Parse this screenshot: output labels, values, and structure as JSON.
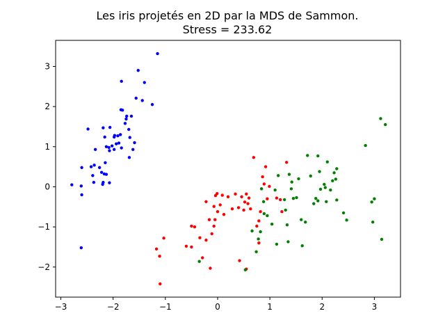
{
  "chart_data": {
    "type": "scatter",
    "title": "Les iris projetés en 2D par la MDS de Sammon.",
    "subtitle": "Stress = 233.62",
    "xlabel": "",
    "ylabel": "",
    "xlim": [
      -3.1,
      3.5
    ],
    "ylim": [
      -2.75,
      3.65
    ],
    "xticks": [
      -3,
      -2,
      -1,
      0,
      1,
      2,
      3
    ],
    "yticks": [
      -2,
      -1,
      0,
      1,
      2,
      3
    ],
    "grid": false,
    "series": [
      {
        "color": "#0000ff",
        "points": [
          [
            -2.79,
            0.05
          ],
          [
            -2.6,
            0.48
          ],
          [
            -2.61,
            0.02
          ],
          [
            -2.6,
            -0.2
          ],
          [
            -2.61,
            -1.52
          ],
          [
            -2.48,
            1.44
          ],
          [
            -2.42,
            0.5
          ],
          [
            -2.36,
            0.54
          ],
          [
            -2.34,
            0.93
          ],
          [
            -2.39,
            0.28
          ],
          [
            -2.37,
            0.11
          ],
          [
            -2.26,
            0.48
          ],
          [
            -2.22,
            0.36
          ],
          [
            -2.2,
            0.06
          ],
          [
            -2.19,
            0.11
          ],
          [
            -2.17,
            0.32
          ],
          [
            -2.15,
            0.6
          ],
          [
            -2.19,
            1.47
          ],
          [
            -2.16,
            1.24
          ],
          [
            -2.13,
            1.0
          ],
          [
            -2.13,
            0.31
          ],
          [
            -2.08,
            0.98
          ],
          [
            -2.07,
            0.9
          ],
          [
            -2.06,
            1.48
          ],
          [
            -2.07,
            0.1
          ],
          [
            -2.02,
            1.02
          ],
          [
            -1.97,
            1.28
          ],
          [
            -1.94,
            1.07
          ],
          [
            -1.91,
            1.27
          ],
          [
            -1.89,
            1.09
          ],
          [
            -1.86,
            1.3
          ],
          [
            -1.98,
            1.24
          ],
          [
            -1.98,
            0.93
          ],
          [
            -1.85,
            1.92
          ],
          [
            -1.82,
            1.91
          ],
          [
            -1.84,
            2.63
          ],
          [
            -1.84,
            0.97
          ],
          [
            -1.77,
            1.58
          ],
          [
            -1.75,
            1.69
          ],
          [
            -1.74,
            1.76
          ],
          [
            -1.7,
            1.43
          ],
          [
            -1.68,
            1.23
          ],
          [
            -1.69,
            0.73
          ],
          [
            -1.65,
            1.76
          ],
          [
            -1.62,
            0.93
          ],
          [
            -1.59,
            1.1
          ],
          [
            -1.56,
            2.21
          ],
          [
            -1.52,
            2.9
          ],
          [
            -1.44,
            2.15
          ],
          [
            -1.4,
            2.6
          ],
          [
            -1.25,
            2.05
          ],
          [
            -1.15,
            3.32
          ]
        ]
      },
      {
        "color": "#ff0000",
        "points": [
          [
            -1.17,
            -1.55
          ],
          [
            -1.11,
            -1.73
          ],
          [
            -1.1,
            -2.42
          ],
          [
            -1.03,
            -1.28
          ],
          [
            -0.6,
            -1.48
          ],
          [
            -0.5,
            -0.98
          ],
          [
            -0.5,
            -1.5
          ],
          [
            -0.44,
            -1.0
          ],
          [
            -0.34,
            -1.27
          ],
          [
            -0.29,
            -1.77
          ],
          [
            -0.22,
            -0.37
          ],
          [
            -0.22,
            -1.33
          ],
          [
            -0.16,
            -0.82
          ],
          [
            -0.14,
            -2.03
          ],
          [
            -0.11,
            -1.17
          ],
          [
            -0.07,
            -0.98
          ],
          [
            -0.07,
            -0.49
          ],
          [
            -0.05,
            -0.82
          ],
          [
            -0.04,
            -0.22
          ],
          [
            -0.01,
            -0.17
          ],
          [
            0.0,
            -0.62
          ],
          [
            0.05,
            -0.45
          ],
          [
            0.09,
            -0.21
          ],
          [
            0.12,
            -0.69
          ],
          [
            0.2,
            -0.25
          ],
          [
            0.28,
            -0.55
          ],
          [
            0.34,
            -0.18
          ],
          [
            0.4,
            -0.52
          ],
          [
            0.42,
            -1.84
          ],
          [
            0.46,
            -0.25
          ],
          [
            0.5,
            -0.58
          ],
          [
            0.52,
            -0.38
          ],
          [
            0.55,
            -0.18
          ],
          [
            0.55,
            -2.05
          ],
          [
            0.58,
            -0.42
          ],
          [
            0.6,
            -0.28
          ],
          [
            0.63,
            -0.55
          ],
          [
            0.69,
            0.73
          ],
          [
            0.75,
            -0.98
          ],
          [
            0.79,
            -1.4
          ],
          [
            0.79,
            -0.85
          ],
          [
            0.82,
            -0.62
          ],
          [
            0.84,
            -0.05
          ],
          [
            0.86,
            0.25
          ],
          [
            0.89,
            0.07
          ],
          [
            0.92,
            0.5
          ],
          [
            0.95,
            -0.3
          ],
          [
            0.99,
            0.01
          ],
          [
            1.13,
            -0.28
          ],
          [
            1.2,
            -0.32
          ],
          [
            1.23,
            -0.62
          ],
          [
            1.32,
            0.61
          ]
        ]
      },
      {
        "color": "#008000",
        "points": [
          [
            -0.35,
            -1.86
          ],
          [
            0.53,
            -2.07
          ],
          [
            0.66,
            -1.1
          ],
          [
            0.74,
            -1.62
          ],
          [
            0.78,
            -1.3
          ],
          [
            0.82,
            -1.12
          ],
          [
            0.84,
            -0.05
          ],
          [
            0.89,
            -0.67
          ],
          [
            0.95,
            -0.72
          ],
          [
            0.88,
            -0.37
          ],
          [
            1.04,
            -0.93
          ],
          [
            1.13,
            -1.43
          ],
          [
            1.1,
            -0.08
          ],
          [
            1.16,
            0.28
          ],
          [
            1.28,
            -0.32
          ],
          [
            1.3,
            -0.58
          ],
          [
            1.33,
            -0.95
          ],
          [
            1.35,
            -1.37
          ],
          [
            1.37,
            0.31
          ],
          [
            1.41,
            -0.05
          ],
          [
            1.42,
            0.12
          ],
          [
            1.45,
            -0.29
          ],
          [
            1.51,
            -0.27
          ],
          [
            1.55,
            0.2
          ],
          [
            1.6,
            -0.82
          ],
          [
            1.62,
            -1.47
          ],
          [
            1.68,
            -0.88
          ],
          [
            1.72,
            0.78
          ],
          [
            1.78,
            0.27
          ],
          [
            1.84,
            -0.42
          ],
          [
            1.88,
            -0.29
          ],
          [
            1.92,
            -0.35
          ],
          [
            1.92,
            0.77
          ],
          [
            1.95,
            0.38
          ],
          [
            1.97,
            -0.06
          ],
          [
            2.04,
            0.06
          ],
          [
            2.06,
            -0.02
          ],
          [
            2.08,
            -0.37
          ],
          [
            2.1,
            0.62
          ],
          [
            2.16,
            -0.08
          ],
          [
            2.2,
            0.15
          ],
          [
            2.23,
            0.35
          ],
          [
            2.26,
            0.19
          ],
          [
            2.28,
            -0.33
          ],
          [
            2.28,
            0.45
          ],
          [
            2.41,
            -0.65
          ],
          [
            2.47,
            -0.83
          ],
          [
            2.83,
            1.03
          ],
          [
            2.95,
            -0.38
          ],
          [
            2.97,
            -0.88
          ],
          [
            3.0,
            -0.3
          ],
          [
            3.12,
            1.7
          ],
          [
            3.14,
            -1.31
          ],
          [
            3.21,
            1.55
          ]
        ]
      }
    ]
  }
}
